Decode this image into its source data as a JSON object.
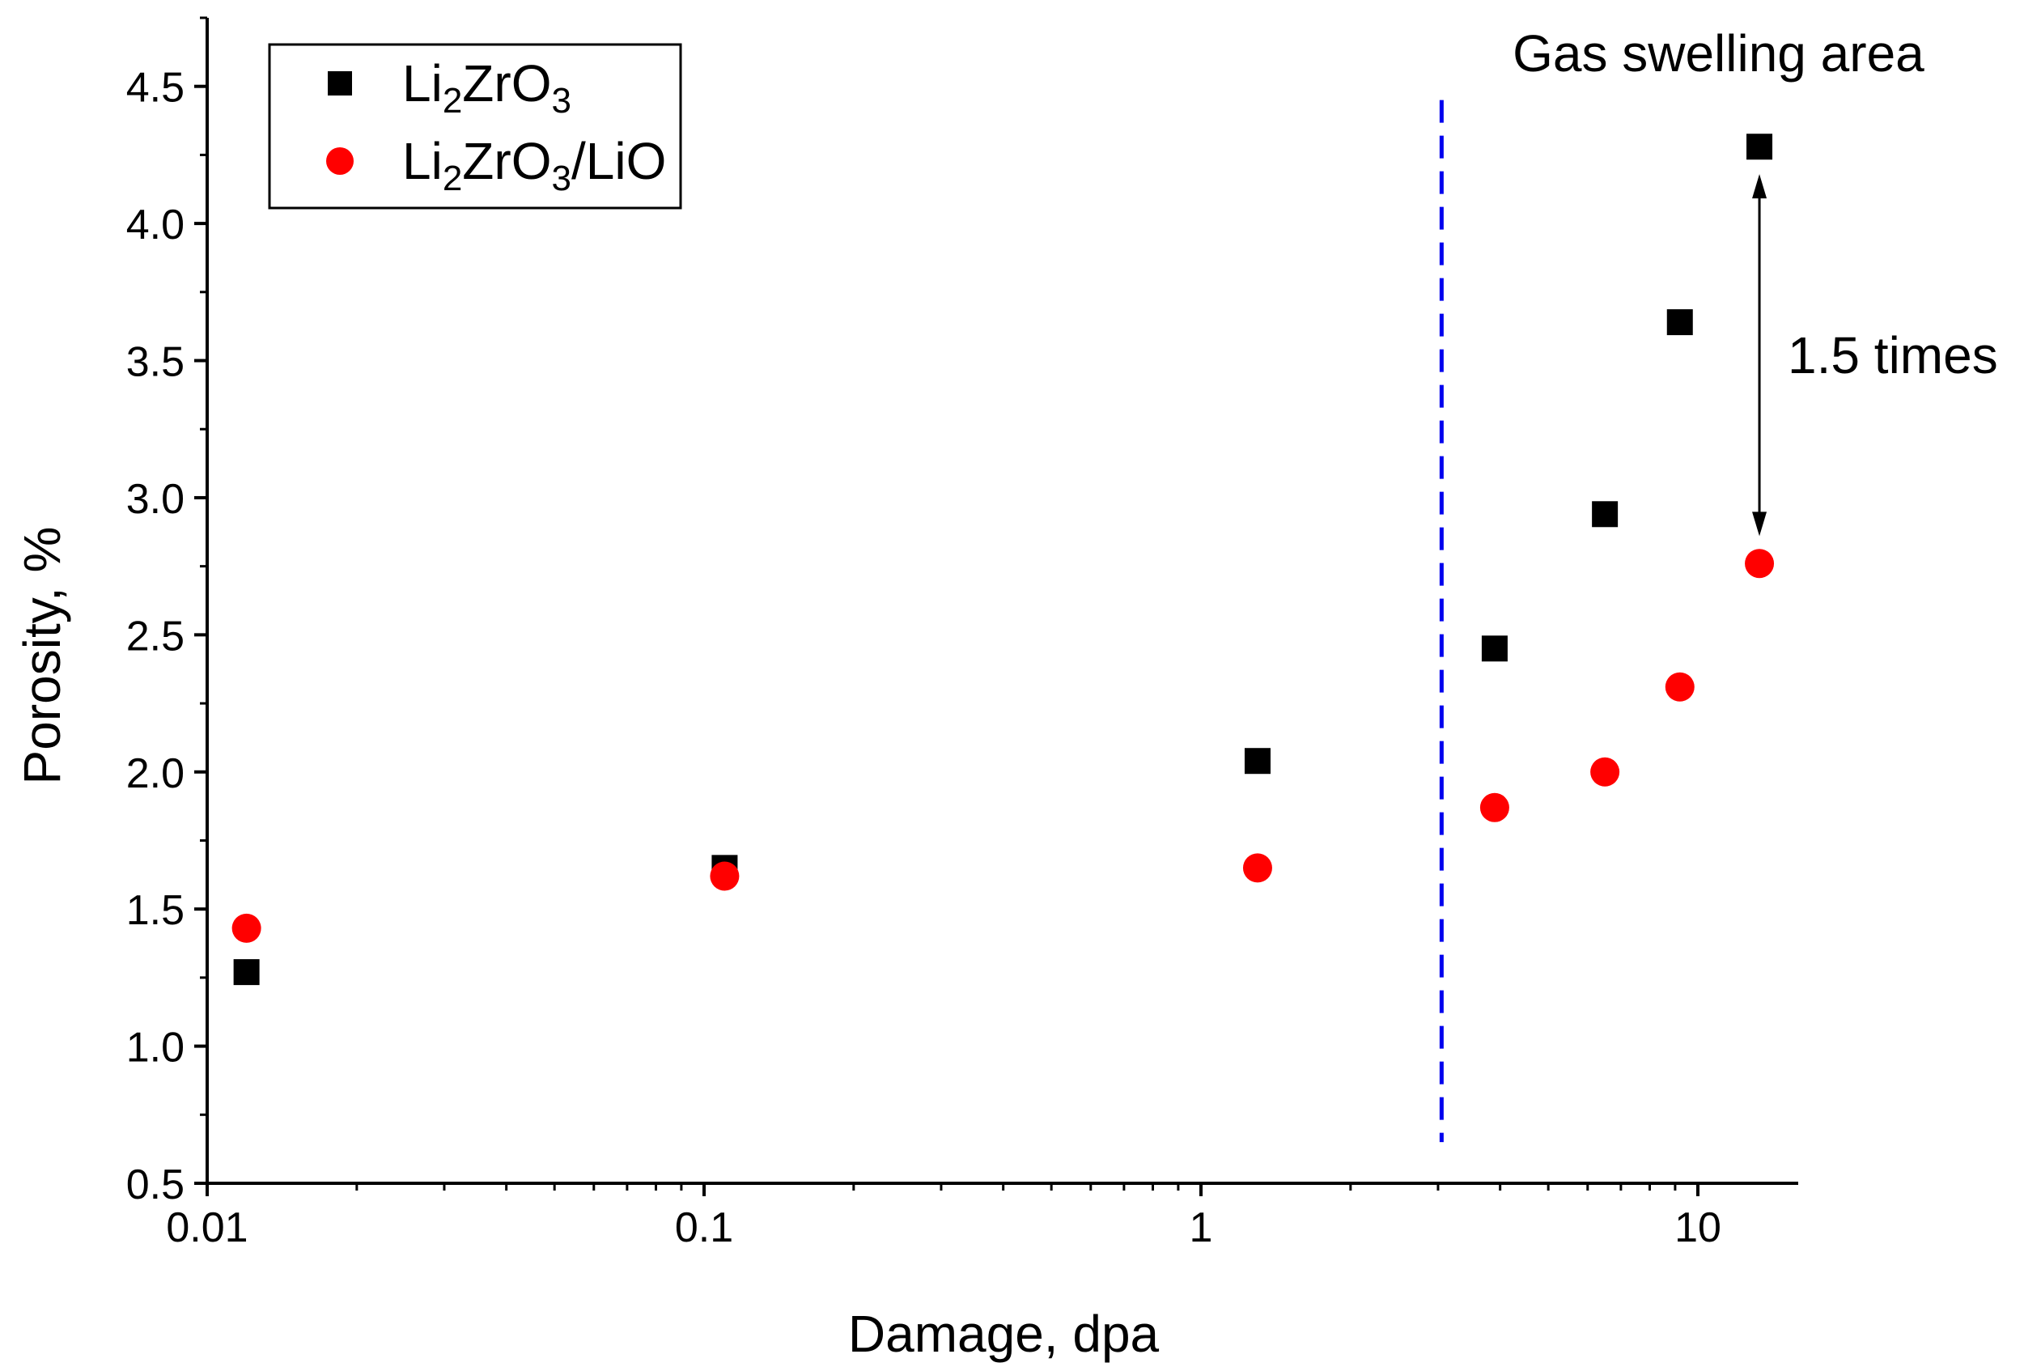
{
  "chart_data": {
    "type": "scatter",
    "title": "",
    "xlabel": "Damage, dpa",
    "ylabel": "Porosity, %",
    "xscale": "log",
    "xlim": [
      0.01,
      15
    ],
    "ylim": [
      0.5,
      4.75
    ],
    "x_ticks": [
      {
        "value": 0.01,
        "label": "0.01"
      },
      {
        "value": 0.1,
        "label": "0.1"
      },
      {
        "value": 1,
        "label": "1"
      },
      {
        "value": 10,
        "label": "10"
      }
    ],
    "y_ticks": [
      {
        "value": 0.5,
        "label": "0.5"
      },
      {
        "value": 1.0,
        "label": "1.0"
      },
      {
        "value": 1.5,
        "label": "1.5"
      },
      {
        "value": 2.0,
        "label": "2.0"
      },
      {
        "value": 2.5,
        "label": "2.5"
      },
      {
        "value": 3.0,
        "label": "3.0"
      },
      {
        "value": 3.5,
        "label": "3.5"
      },
      {
        "value": 4.0,
        "label": "4.0"
      },
      {
        "value": 4.5,
        "label": "4.5"
      }
    ],
    "legend_position": "top-left",
    "series": [
      {
        "name": "Li2ZrO3",
        "label_parts": [
          {
            "text": "Li",
            "sub": false
          },
          {
            "text": "2",
            "sub": true
          },
          {
            "text": "ZrO",
            "sub": false
          },
          {
            "text": "3",
            "sub": true
          }
        ],
        "marker": "square",
        "color": "#000000",
        "x": [
          0.012,
          0.11,
          1.3,
          3.9,
          6.5,
          9.2,
          13.3
        ],
        "y": [
          1.27,
          1.65,
          2.04,
          2.45,
          2.94,
          3.64,
          4.28
        ]
      },
      {
        "name": "Li2ZrO3/LiO",
        "label_parts": [
          {
            "text": "Li",
            "sub": false
          },
          {
            "text": "2",
            "sub": true
          },
          {
            "text": "ZrO",
            "sub": false
          },
          {
            "text": "3",
            "sub": true
          },
          {
            "text": "/LiO",
            "sub": false
          }
        ],
        "marker": "circle",
        "color": "#ff0000",
        "x": [
          0.012,
          0.11,
          1.3,
          3.9,
          6.5,
          9.2,
          13.3
        ],
        "y": [
          1.43,
          1.62,
          1.65,
          1.87,
          2.0,
          2.31,
          2.76
        ]
      }
    ],
    "threshold_line": {
      "x": 3.05,
      "y_range": [
        0.65,
        4.45
      ],
      "color": "#0000ee",
      "style": "dashed"
    },
    "annotations": [
      {
        "id": "region",
        "text": "Gas swelling area",
        "x": 11.0,
        "y": 4.62
      },
      {
        "id": "ratio",
        "text": "1.5 times",
        "x": 13.3,
        "y_from": 4.18,
        "y_to": 2.86,
        "arrow": "double"
      }
    ]
  }
}
